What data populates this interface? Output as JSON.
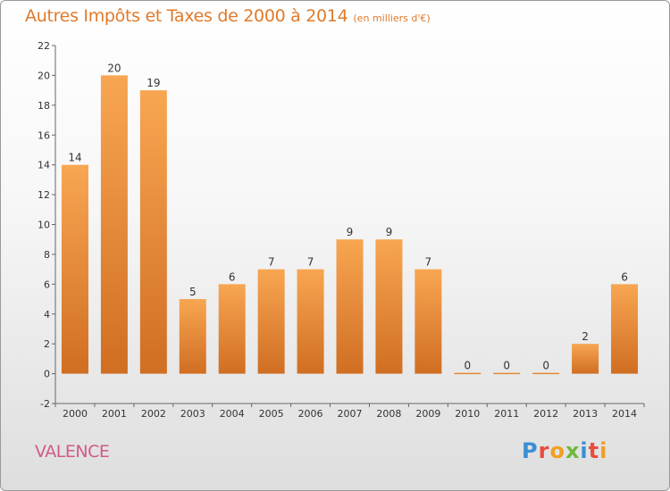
{
  "header": {
    "title": "Autres Impôts et Taxes de 2000 à 2014",
    "subtitle": "(en milliers d'€)"
  },
  "footer": {
    "city": "VALENCE",
    "logo": "Proxiti"
  },
  "colors": {
    "title": "#e07a2a",
    "bar_light": "#f8a652",
    "bar_dark": "#d06e22",
    "city": "#d05a8a",
    "logo": [
      "#3a8fd6",
      "#e84c3c",
      "#f0a020",
      "#6dbb3a",
      "#3a8fd6",
      "#e84c3c",
      "#f0a020"
    ]
  },
  "chart_data": {
    "type": "bar",
    "title": "Autres Impôts et Taxes de 2000 à 2014",
    "subtitle": "(en milliers d'€)",
    "categories": [
      "2000",
      "2001",
      "2002",
      "2003",
      "2004",
      "2005",
      "2006",
      "2007",
      "2008",
      "2009",
      "2010",
      "2011",
      "2012",
      "2013",
      "2014"
    ],
    "values": [
      14,
      20,
      19,
      5,
      6,
      7,
      7,
      9,
      9,
      7,
      0,
      0,
      0,
      2,
      6
    ],
    "labels": [
      "14",
      "20",
      "19",
      "5",
      "6",
      "7",
      "7",
      "9",
      "9",
      "7",
      "0",
      "0",
      "0",
      "2",
      "6"
    ],
    "ylim": [
      -2,
      22
    ],
    "yticks": [
      "-2",
      "0",
      "2",
      "4",
      "6",
      "8",
      "10",
      "12",
      "14",
      "16",
      "18",
      "20",
      "22"
    ],
    "xlabel": "",
    "ylabel": "",
    "grid": false,
    "legend": "none"
  }
}
